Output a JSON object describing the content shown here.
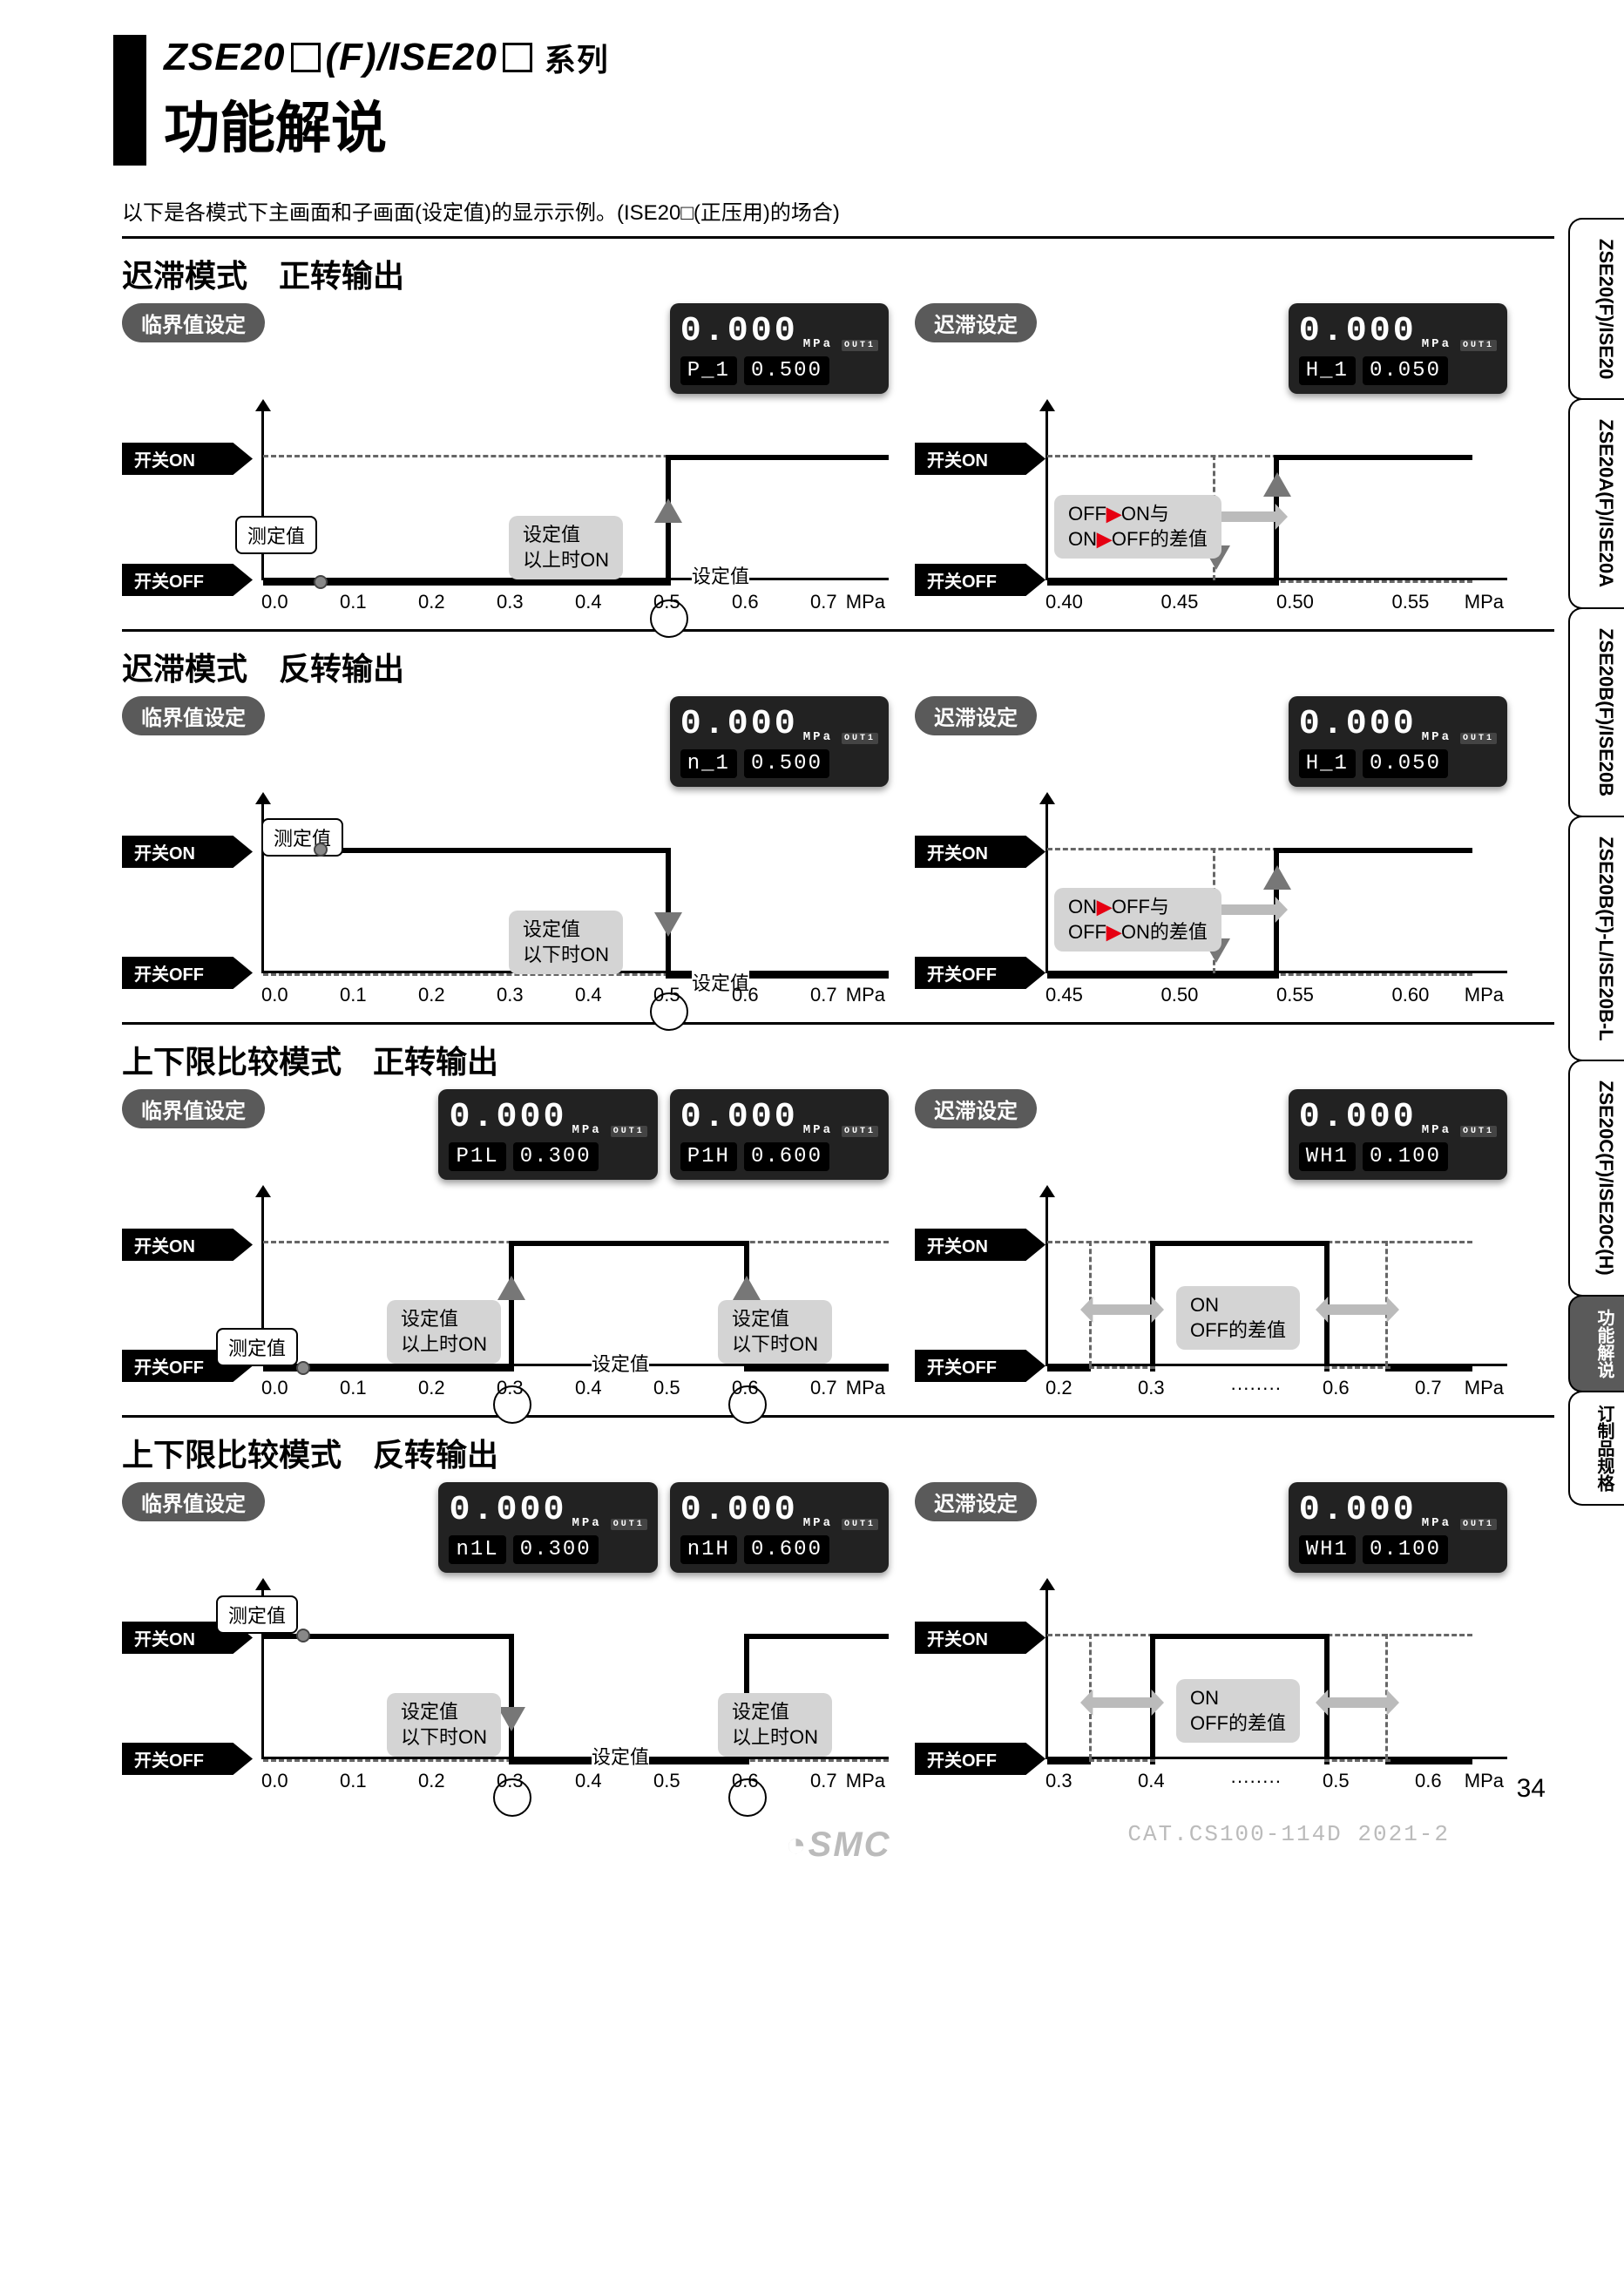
{
  "title": {
    "product_prefix": "ZSE20",
    "product_mid": "(F)/ISE20",
    "series_label": "系列",
    "function_heading": "功能解说"
  },
  "intro_text": "以下是各模式下主画面和子画面(设定值)的显示示例。(ISE20□(正压用)的场合)",
  "common": {
    "switch_on": "开关ON",
    "switch_off": "开关OFF",
    "measured_value": "测定值",
    "setting_value": "设定值",
    "unit_mpa": "MPa",
    "threshold_pill": "临界值设定",
    "hysteresis_pill": "迟滞设定",
    "above_on": "设定值\n以上时ON",
    "below_on": "设定值\n以下时ON",
    "off_on_diff": "OFF▶ON与\nON▶OFF的差值",
    "on_off_diff": "ON▶OFF与\nOFF▶ON的差值",
    "on_off_diff_window": "ON\nOFF的差值"
  },
  "sections": [
    {
      "title": "迟滞模式　正转输出",
      "left": {
        "lcd": {
          "main": "0.000",
          "sub_l": "P_1",
          "sub_r": "0.500",
          "out": "OUT1"
        },
        "x_ticks": [
          "0.0",
          "0.1",
          "0.2",
          "0.3",
          "0.4",
          "0.5",
          "0.6",
          "0.7"
        ],
        "set_point_idx": 5,
        "line_type": "rise",
        "info": "above_on"
      },
      "right": {
        "lcd": {
          "main": "0.000",
          "sub_l": "H_1",
          "sub_r": "0.050",
          "out": "OUT1"
        },
        "x_ticks": [
          "0.40",
          "0.45",
          "0.50",
          "0.55"
        ],
        "box_type": "dashed",
        "info": "off_on_diff"
      }
    },
    {
      "title": "迟滞模式　反转输出",
      "left": {
        "lcd": {
          "main": "0.000",
          "sub_l": "n_1",
          "sub_r": "0.500",
          "out": "OUT1"
        },
        "x_ticks": [
          "0.0",
          "0.1",
          "0.2",
          "0.3",
          "0.4",
          "0.5",
          "0.6",
          "0.7"
        ],
        "set_point_idx": 5,
        "line_type": "fall",
        "info": "below_on"
      },
      "right": {
        "lcd": {
          "main": "0.000",
          "sub_l": "H_1",
          "sub_r": "0.050",
          "out": "OUT1"
        },
        "x_ticks": [
          "0.45",
          "0.50",
          "0.55",
          "0.60"
        ],
        "box_type": "dashed",
        "info": "on_off_diff"
      }
    },
    {
      "title": "上下限比较模式　正转输出",
      "left": {
        "lcd_pair": [
          {
            "main": "0.000",
            "sub_l": "P1L",
            "sub_r": "0.300",
            "out": "OUT1"
          },
          {
            "main": "0.000",
            "sub_l": "P1H",
            "sub_r": "0.600",
            "out": "OUT1"
          }
        ],
        "x_ticks": [
          "0.0",
          "0.1",
          "0.2",
          "0.3",
          "0.4",
          "0.5",
          "0.6",
          "0.7"
        ],
        "set_points": [
          3,
          6
        ],
        "line_type": "window_in",
        "info_l": "above_on",
        "info_r": "below_on"
      },
      "right": {
        "lcd": {
          "main": "0.000",
          "sub_l": "WH1",
          "sub_r": "0.100",
          "out": "OUT1"
        },
        "x_ticks": [
          "0.2",
          "0.3",
          "········",
          "0.6",
          "0.7"
        ],
        "box_type": "double",
        "info": "on_off_diff_window"
      }
    },
    {
      "title": "上下限比较模式　反转输出",
      "left": {
        "lcd_pair": [
          {
            "main": "0.000",
            "sub_l": "n1L",
            "sub_r": "0.300",
            "out": "OUT1"
          },
          {
            "main": "0.000",
            "sub_l": "n1H",
            "sub_r": "0.600",
            "out": "OUT1"
          }
        ],
        "x_ticks": [
          "0.0",
          "0.1",
          "0.2",
          "0.3",
          "0.4",
          "0.5",
          "0.6",
          "0.7"
        ],
        "set_points": [
          3,
          6
        ],
        "line_type": "window_out",
        "info_l": "below_on",
        "info_r": "above_on"
      },
      "right": {
        "lcd": {
          "main": "0.000",
          "sub_l": "WH1",
          "sub_r": "0.100",
          "out": "OUT1"
        },
        "x_ticks": [
          "0.3",
          "0.4",
          "········",
          "0.5",
          "0.6"
        ],
        "box_type": "double",
        "info": "on_off_diff_window"
      }
    }
  ],
  "side_tabs": [
    {
      "label": "ZSE20(F)/ISE20",
      "active": false
    },
    {
      "label": "ZSE20A(F)/ISE20A",
      "active": false
    },
    {
      "label": "ZSE20B(F)/ISE20B",
      "active": false
    },
    {
      "label": "ZSE20B(F)-L/ISE20B-L",
      "active": false
    },
    {
      "label": "ZSE20C(F)/ISE20C(H)",
      "active": false
    },
    {
      "label": "功能解说",
      "active": true,
      "small": true
    },
    {
      "label": "订制品规格",
      "active": false,
      "small": true
    }
  ],
  "footer": {
    "logo": "SMC",
    "page": "34",
    "cat": "CAT.CS100-114D 2021-2"
  },
  "colors": {
    "pill_bg": "#5a5a5a",
    "lcd_bg": "#222222",
    "info_bg": "#d4d4d4",
    "accent_red": "#e60012",
    "gray_arrow": "#bbbbbb",
    "dash": "#666666"
  }
}
